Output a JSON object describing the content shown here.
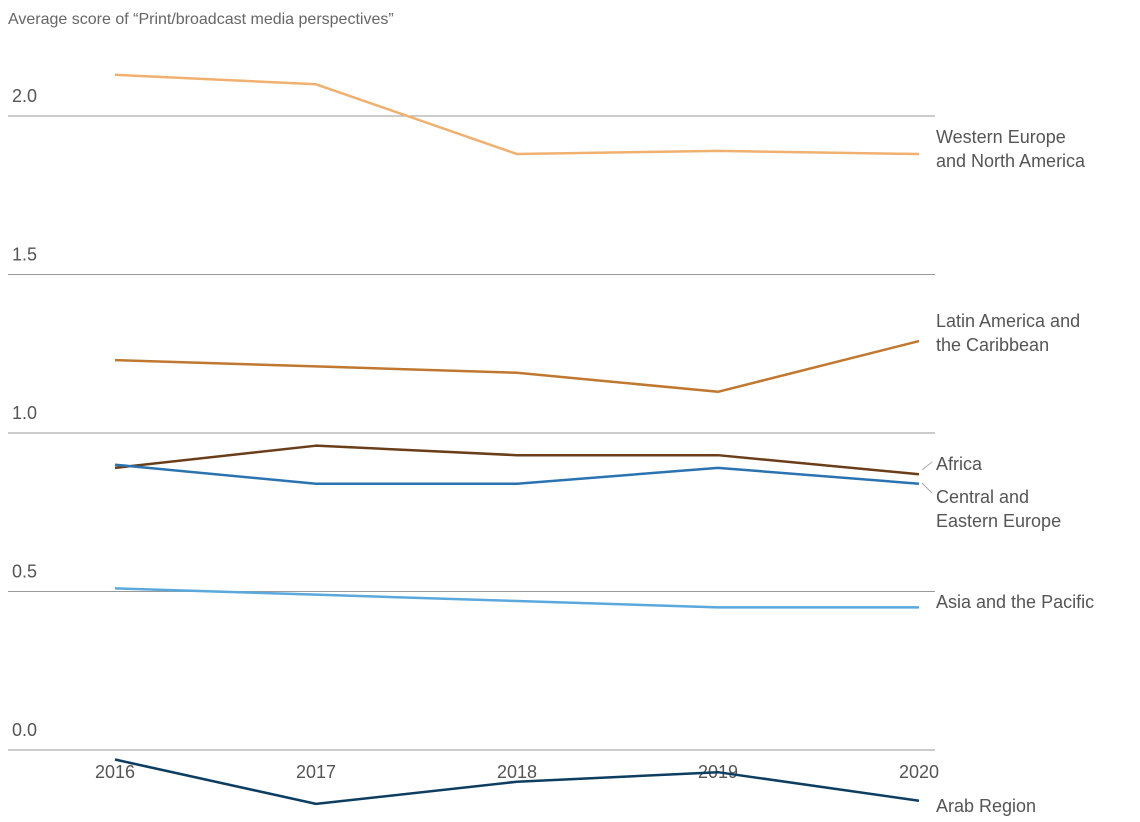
{
  "chart_data": {
    "type": "line",
    "title": "Average score of “Print/broadcast media perspectives”",
    "xlabel": "",
    "ylabel": "",
    "x": [
      "2016",
      "2017",
      "2018",
      "2019",
      "2020"
    ],
    "yticks": [
      "2.0",
      "1.5",
      "1.0",
      "0.5",
      "0.0"
    ],
    "ylim": [
      0,
      2.0
    ],
    "grid": true,
    "legend": "inline labels at line ends",
    "series": [
      {
        "name": "Western Europe and North America",
        "label_lines": [
          "Western Europe",
          "and North America"
        ],
        "color": "#f0b070",
        "values": [
          2.13,
          2.1,
          1.88,
          1.89,
          1.88
        ]
      },
      {
        "name": "Latin America and the Caribbean",
        "label_lines": [
          "Latin America and",
          "the Caribbean"
        ],
        "color": "#c07830",
        "values": [
          1.23,
          1.21,
          1.19,
          1.13,
          1.29
        ]
      },
      {
        "name": "Africa",
        "label_lines": [
          "Africa"
        ],
        "color": "#6b3e1a",
        "values": [
          0.89,
          0.96,
          0.93,
          0.93,
          0.87
        ]
      },
      {
        "name": "Central and Eastern Europe",
        "label_lines": [
          "Central and",
          "Eastern Europe"
        ],
        "color": "#2a73b0",
        "values": [
          0.9,
          0.84,
          0.84,
          0.89,
          0.84
        ]
      },
      {
        "name": "Asia and the Pacific",
        "label_lines": [
          "Asia and the Pacific"
        ],
        "color": "#5aa8dc",
        "values": [
          0.51,
          0.49,
          0.47,
          0.45,
          0.45
        ]
      },
      {
        "name": "Arab Region",
        "label_lines": [
          "Arab Region"
        ],
        "color": "#0d3d60",
        "values": [
          -0.03,
          -0.17,
          -0.1,
          -0.07,
          -0.16
        ]
      }
    ]
  }
}
